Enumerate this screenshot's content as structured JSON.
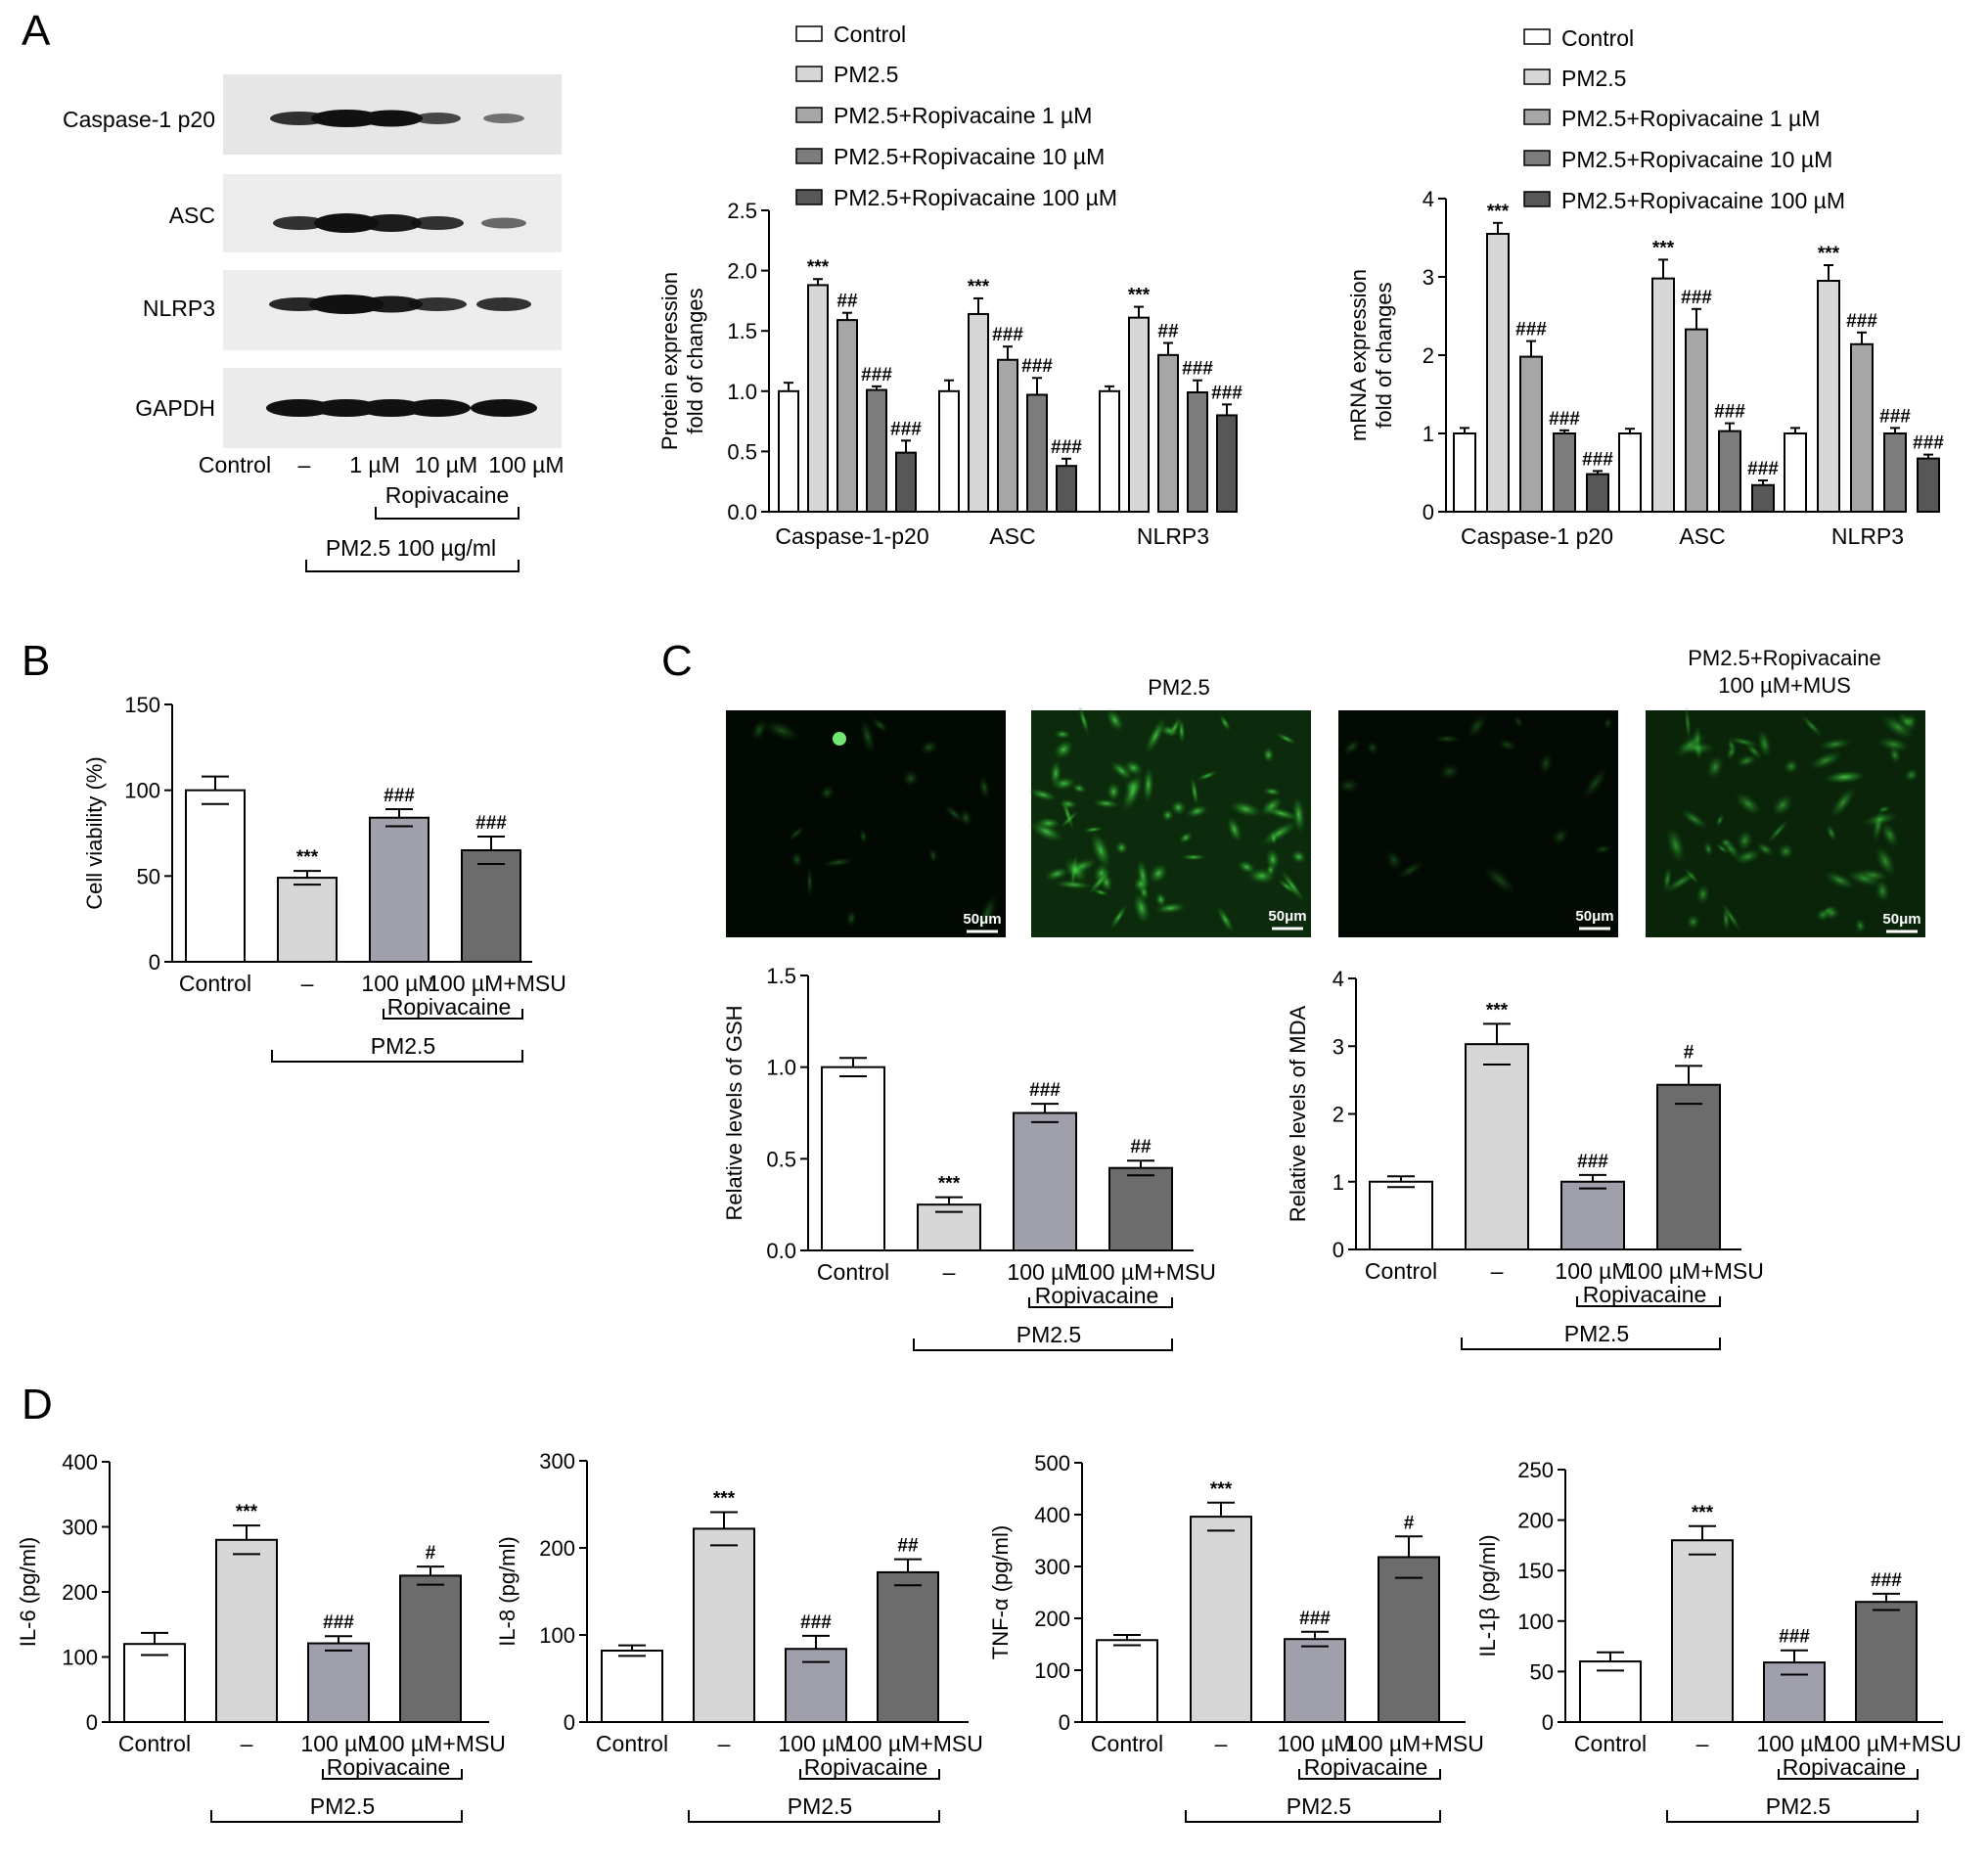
{
  "panels": {
    "A": "A",
    "B": "B",
    "C": "C",
    "D": "D"
  },
  "western_blot": {
    "bands": [
      "Caspase-1 p20",
      "ASC",
      "NLRP3",
      "GAPDH"
    ],
    "lanes": [
      "Control",
      "–",
      "1 µM",
      "10 µM",
      "100 µM"
    ],
    "group_ropivacaine": "Ropivacaine",
    "group_pm": "PM2.5 100 µg/ml"
  },
  "legend_labels": [
    "Control",
    "PM2.5",
    "PM2.5+Ropivacaine 1 µM",
    "PM2.5+Ropivacaine 10 µM",
    "PM2.5+Ropivacaine 100 µM"
  ],
  "series_colors": [
    "#ffffff",
    "#d6d6d6",
    "#a6a6a6",
    "#7c7c7c",
    "#575757"
  ],
  "four_group_colors": [
    "#ffffff",
    "#d6d6d6",
    "#a0a0ac",
    "#6c6c6c"
  ],
  "group_labels": {
    "categories": [
      "Control",
      "–",
      "100 µM",
      "100 µM+MSU"
    ],
    "ropivacaine": "Ropivacaine",
    "pm": "PM2.5"
  },
  "image_titles": {
    "pm25": "PM2.5",
    "msu_line1": "PM2.5+Ropivacaine",
    "msu_line2": "100 µM+MUS",
    "scale": "50μm"
  },
  "chart_data": [
    {
      "id": "A_protein",
      "type": "bar",
      "categories": [
        "Caspase-1-p20",
        "ASC",
        "NLRP3"
      ],
      "ylabel": [
        "Protein expression",
        "fold of changes"
      ],
      "ylim": [
        0,
        2.5
      ],
      "yticks": [
        "0.0",
        "0.5",
        "1.0",
        "1.5",
        "2.0",
        "2.5"
      ],
      "series": [
        {
          "name": "Control",
          "values": [
            1.0,
            1.0,
            1.0
          ],
          "errors": [
            0.07,
            0.09,
            0.04
          ]
        },
        {
          "name": "PM2.5",
          "values": [
            1.88,
            1.64,
            1.61
          ],
          "errors": [
            0.05,
            0.13,
            0.09
          ]
        },
        {
          "name": "PM2.5+Ropivacaine 1 µM",
          "values": [
            1.59,
            1.26,
            1.3
          ],
          "errors": [
            0.06,
            0.11,
            0.1
          ]
        },
        {
          "name": "PM2.5+Ropivacaine 10 µM",
          "values": [
            1.01,
            0.97,
            0.99
          ],
          "errors": [
            0.03,
            0.14,
            0.1
          ]
        },
        {
          "name": "PM2.5+Ropivacaine 100 µM",
          "values": [
            0.49,
            0.38,
            0.8
          ],
          "errors": [
            0.1,
            0.06,
            0.09
          ]
        }
      ],
      "significance": [
        [
          "",
          "***",
          "##",
          "###",
          "###"
        ],
        [
          "",
          "***",
          "###",
          "###",
          "###"
        ],
        [
          "",
          "***",
          "##",
          "###",
          "###"
        ]
      ]
    },
    {
      "id": "A_mrna",
      "type": "bar",
      "categories": [
        "Caspase-1 p20",
        "ASC",
        "NLRP3"
      ],
      "ylabel": [
        "mRNA expression",
        "fold of changes"
      ],
      "ylim": [
        0,
        4
      ],
      "yticks": [
        "0",
        "1",
        "2",
        "3",
        "4"
      ],
      "series": [
        {
          "name": "Control",
          "values": [
            1.0,
            1.0,
            1.0
          ],
          "errors": [
            0.07,
            0.06,
            0.07
          ]
        },
        {
          "name": "PM2.5",
          "values": [
            3.55,
            2.98,
            2.95
          ],
          "errors": [
            0.14,
            0.24,
            0.2
          ]
        },
        {
          "name": "PM2.5+Ropivacaine 1 µM",
          "values": [
            1.98,
            2.33,
            2.14
          ],
          "errors": [
            0.2,
            0.26,
            0.15
          ]
        },
        {
          "name": "PM2.5+Ropivacaine 10 µM",
          "values": [
            1.0,
            1.03,
            1.0
          ],
          "errors": [
            0.04,
            0.1,
            0.07
          ]
        },
        {
          "name": "PM2.5+Ropivacaine 100 µM",
          "values": [
            0.48,
            0.34,
            0.68
          ],
          "errors": [
            0.04,
            0.06,
            0.05
          ]
        }
      ],
      "significance": [
        [
          "",
          "***",
          "###",
          "###",
          "###"
        ],
        [
          "",
          "***",
          "###",
          "###",
          "###"
        ],
        [
          "",
          "***",
          "###",
          "###",
          "###"
        ]
      ]
    },
    {
      "id": "B_viability",
      "type": "bar",
      "ylabel": "Cell viability (%)",
      "ylim": [
        0,
        150
      ],
      "yticks": [
        "0",
        "50",
        "100",
        "150"
      ],
      "values": [
        100,
        49,
        84,
        65
      ],
      "errors": [
        8,
        4,
        5,
        8
      ],
      "significance": [
        "",
        "***",
        "###",
        "###"
      ]
    },
    {
      "id": "C_gsh",
      "type": "bar",
      "ylabel": "Relative levels of GSH",
      "ylim": [
        0,
        1.5
      ],
      "yticks": [
        "0.0",
        "0.5",
        "1.0",
        "1.5"
      ],
      "values": [
        1.0,
        0.25,
        0.75,
        0.45
      ],
      "errors": [
        0.05,
        0.04,
        0.05,
        0.04
      ],
      "significance": [
        "",
        "***",
        "###",
        "##"
      ]
    },
    {
      "id": "C_mda",
      "type": "bar",
      "ylabel": "Relative levels of MDA",
      "ylim": [
        0,
        4
      ],
      "yticks": [
        "0",
        "1",
        "2",
        "3",
        "4"
      ],
      "values": [
        1.0,
        3.03,
        1.0,
        2.43
      ],
      "errors": [
        0.08,
        0.3,
        0.1,
        0.28
      ],
      "significance": [
        "",
        "***",
        "###",
        "#"
      ]
    },
    {
      "id": "D_il6",
      "type": "bar",
      "ylabel": "IL-6 (pg/ml)",
      "ylim": [
        0,
        400
      ],
      "yticks": [
        "0",
        "100",
        "200",
        "300",
        "400"
      ],
      "values": [
        120,
        280,
        121,
        225
      ],
      "errors": [
        17,
        22,
        11,
        14
      ],
      "significance": [
        "",
        "***",
        "###",
        "#"
      ]
    },
    {
      "id": "D_il8",
      "type": "bar",
      "ylabel": "IL-8 (pg/ml)",
      "ylim": [
        0,
        300
      ],
      "yticks": [
        "0",
        "100",
        "200",
        "300"
      ],
      "values": [
        82,
        222,
        84,
        172
      ],
      "errors": [
        6,
        19,
        15,
        15
      ],
      "significance": [
        "",
        "***",
        "###",
        "##"
      ]
    },
    {
      "id": "D_tnf",
      "type": "bar",
      "ylabel": "TNF-α (pg/ml)",
      "ylim": [
        0,
        500
      ],
      "yticks": [
        "0",
        "100",
        "200",
        "300",
        "400",
        "500"
      ],
      "values": [
        158,
        396,
        160,
        318
      ],
      "errors": [
        10,
        27,
        14,
        40
      ],
      "significance": [
        "",
        "***",
        "###",
        "#"
      ]
    },
    {
      "id": "D_il1b",
      "type": "bar",
      "ylabel": "IL-1β (pg/ml)",
      "ylim": [
        0,
        250
      ],
      "yticks": [
        "0",
        "50",
        "100",
        "150",
        "200",
        "250"
      ],
      "values": [
        60,
        180,
        59,
        119
      ],
      "errors": [
        9,
        14,
        12,
        8
      ],
      "significance": [
        "",
        "***",
        "###",
        "###"
      ]
    }
  ]
}
